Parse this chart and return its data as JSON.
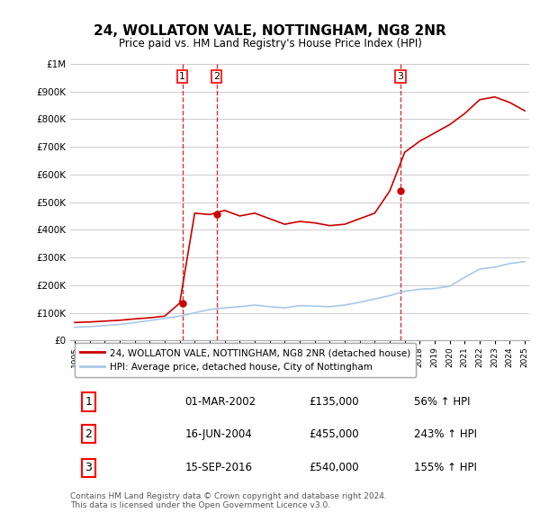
{
  "title": "24, WOLLATON VALE, NOTTINGHAM, NG8 2NR",
  "subtitle": "Price paid vs. HM Land Registry's House Price Index (HPI)",
  "footer": "Contains HM Land Registry data © Crown copyright and database right 2024.\nThis data is licensed under the Open Government Licence v3.0.",
  "legend_line1": "24, WOLLATON VALE, NOTTINGHAM, NG8 2NR (detached house)",
  "legend_line2": "HPI: Average price, detached house, City of Nottingham",
  "transactions": [
    {
      "num": 1,
      "date": "01-MAR-2002",
      "price": "£135,000",
      "change": "56% ↑ HPI"
    },
    {
      "num": 2,
      "date": "16-JUN-2004",
      "price": "£455,000",
      "change": "243% ↑ HPI"
    },
    {
      "num": 3,
      "date": "15-SEP-2016",
      "price": "£540,000",
      "change": "155% ↑ HPI"
    }
  ],
  "hpi_color": "#a8c8e8",
  "price_color": "#cc0000",
  "vline_color": "#cc0000",
  "background_color": "#ffffff",
  "grid_color": "#cccccc",
  "ylim": [
    0,
    1000000
  ],
  "yticks": [
    0,
    100000,
    200000,
    300000,
    400000,
    500000,
    600000,
    700000,
    800000,
    900000,
    1000000
  ],
  "ytick_labels": [
    "£0",
    "£100K",
    "£200K",
    "£300K",
    "£400K",
    "£500K",
    "£600K",
    "£700K",
    "£800K",
    "£900K",
    "£1M"
  ],
  "hpi_data": {
    "years": [
      1995,
      1996,
      1997,
      1998,
      1999,
      2000,
      2001,
      2002,
      2003,
      2004,
      2005,
      2006,
      2007,
      2008,
      2009,
      2010,
      2011,
      2012,
      2013,
      2014,
      2015,
      2016,
      2017,
      2018,
      2019,
      2020,
      2021,
      2022,
      2023,
      2024,
      2025
    ],
    "values": [
      48000,
      50000,
      54000,
      58000,
      65000,
      72000,
      80000,
      88000,
      100000,
      112000,
      118000,
      122000,
      128000,
      122000,
      118000,
      126000,
      124000,
      122000,
      128000,
      138000,
      150000,
      162000,
      178000,
      185000,
      188000,
      196000,
      228000,
      258000,
      265000,
      278000,
      285000
    ]
  },
  "price_data": {
    "years": [
      1995,
      1996,
      1997,
      1998,
      1999,
      2000,
      2001,
      2002,
      2003,
      2004,
      2005,
      2006,
      2007,
      2008,
      2009,
      2010,
      2011,
      2012,
      2013,
      2014,
      2015,
      2016,
      2017,
      2018,
      2019,
      2020,
      2021,
      2022,
      2023,
      2024,
      2025
    ],
    "values": [
      65000,
      67000,
      70000,
      73000,
      78000,
      82000,
      88000,
      135000,
      460000,
      455000,
      470000,
      450000,
      460000,
      440000,
      420000,
      430000,
      425000,
      415000,
      420000,
      440000,
      460000,
      540000,
      680000,
      720000,
      750000,
      780000,
      820000,
      870000,
      880000,
      860000,
      830000
    ]
  },
  "transaction_years": [
    2002.17,
    2004.46,
    2016.71
  ],
  "transaction_prices": [
    135000,
    455000,
    540000
  ],
  "xlim_start": 1995,
  "xlim_end": 2025
}
